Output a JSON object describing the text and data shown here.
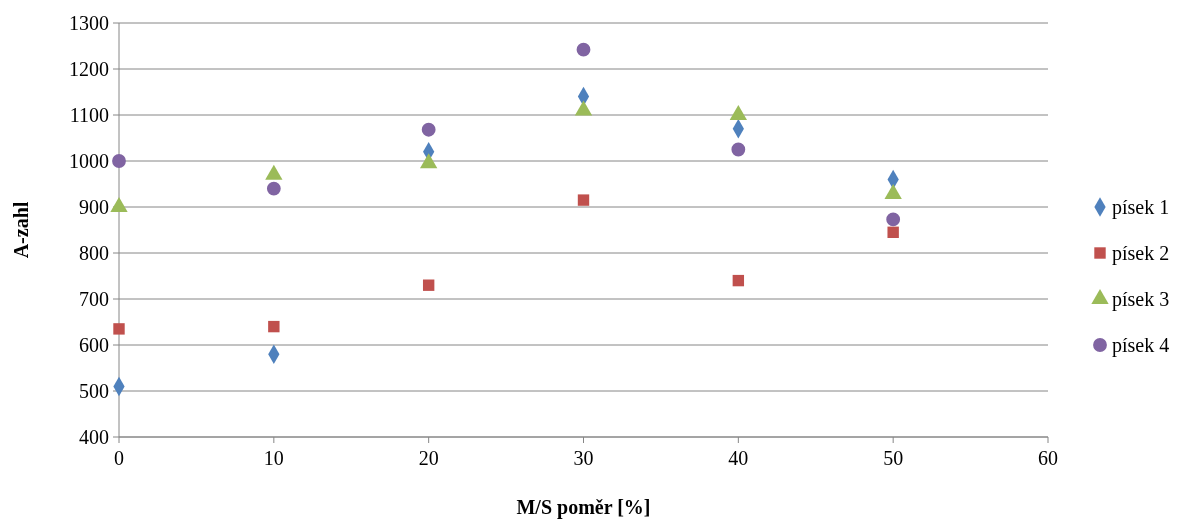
{
  "chart_data": {
    "type": "scatter",
    "xlabel": "M/S poměr [%]",
    "ylabel": "A-zahl",
    "xlim": [
      0,
      60
    ],
    "xticks": [
      0,
      10,
      20,
      30,
      40,
      50,
      60
    ],
    "ylim": [
      400,
      1300
    ],
    "yticks": [
      400,
      500,
      600,
      700,
      800,
      900,
      1000,
      1100,
      1200,
      1300
    ],
    "grid": "y",
    "legend": "right",
    "x": [
      0,
      10,
      20,
      30,
      40,
      50
    ],
    "series": [
      {
        "name": "písek 1",
        "color": "#4f81bd",
        "marker": "diamond",
        "values": [
          510,
          580,
          1020,
          1140,
          1070,
          960
        ]
      },
      {
        "name": "písek 2",
        "color": "#c0504d",
        "marker": "square",
        "values": [
          635,
          640,
          730,
          915,
          740,
          845
        ]
      },
      {
        "name": "písek 3",
        "color": "#9bbb59",
        "marker": "triangle",
        "values": [
          900,
          970,
          995,
          1110,
          1100,
          928
        ]
      },
      {
        "name": "písek 4",
        "color": "#8064a2",
        "marker": "circle",
        "values": [
          1000,
          940,
          1068,
          1242,
          1025,
          873
        ]
      }
    ]
  }
}
